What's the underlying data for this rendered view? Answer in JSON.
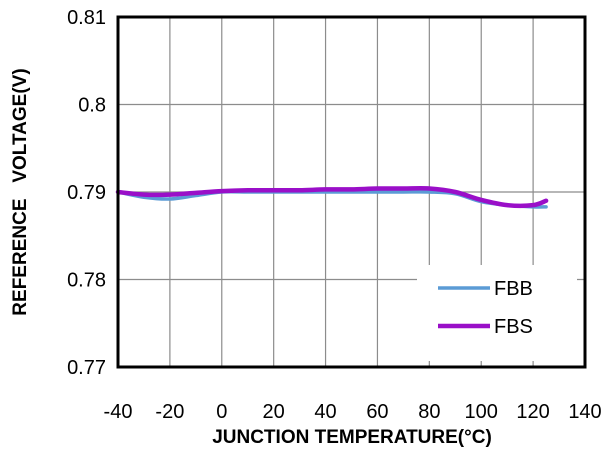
{
  "chart_data": {
    "type": "line",
    "title": "",
    "xlabel": "JUNCTION TEMPERATURE(°C)",
    "ylabel": "REFERENCE   VOLTAGE(V)",
    "xlim": [
      -40,
      140
    ],
    "ylim": [
      0.77,
      0.81
    ],
    "x_ticks": [
      "-40",
      "-20",
      "0",
      "20",
      "40",
      "60",
      "80",
      "100",
      "120",
      "140"
    ],
    "y_ticks": [
      "0.81",
      "0.8",
      "0.79",
      "0.78",
      "0.77"
    ],
    "grid": true,
    "legend_position": "bottom-right",
    "series": [
      {
        "name": "FBB",
        "color": "#5b9bd5",
        "x": [
          -40,
          -30,
          -20,
          -10,
          0,
          10,
          20,
          30,
          40,
          50,
          60,
          70,
          80,
          90,
          100,
          110,
          120,
          125
        ],
        "y": [
          0.79,
          0.7894,
          0.7892,
          0.7896,
          0.79,
          0.79,
          0.79,
          0.79,
          0.79,
          0.79,
          0.79,
          0.79,
          0.79,
          0.7898,
          0.7889,
          0.7885,
          0.7883,
          0.7883
        ]
      },
      {
        "name": "FBS",
        "color": "#9a0fc8",
        "x": [
          -40,
          -30,
          -20,
          -10,
          0,
          10,
          20,
          30,
          40,
          50,
          60,
          70,
          80,
          90,
          100,
          110,
          120,
          125
        ],
        "y": [
          0.79,
          0.7897,
          0.7897,
          0.7899,
          0.7901,
          0.7902,
          0.7902,
          0.7902,
          0.7903,
          0.7903,
          0.7904,
          0.7904,
          0.7904,
          0.79,
          0.7891,
          0.7885,
          0.7885,
          0.789
        ]
      }
    ]
  }
}
